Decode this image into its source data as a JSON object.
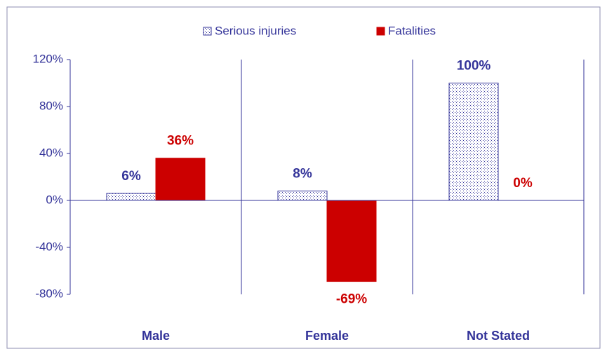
{
  "chart_data": {
    "type": "bar",
    "categories": [
      "Male",
      "Female",
      "Not Stated"
    ],
    "series": [
      {
        "name": "Serious injuries",
        "color": "#333399",
        "values": [
          6,
          8,
          100
        ],
        "value_labels": [
          "6%",
          "8%",
          "100%"
        ]
      },
      {
        "name": "Fatalities",
        "color": "#cc0000",
        "values": [
          36,
          -69,
          0
        ],
        "value_labels": [
          "36%",
          "-69%",
          "0%"
        ]
      }
    ],
    "ylim": [
      -80,
      120
    ],
    "yticks": [
      {
        "value": -80,
        "label": "-80%"
      },
      {
        "value": -40,
        "label": "-40%"
      },
      {
        "value": 0,
        "label": "0%"
      },
      {
        "value": 40,
        "label": "40%"
      },
      {
        "value": 80,
        "label": "80%"
      },
      {
        "value": 120,
        "label": "120%"
      }
    ],
    "legend": "top"
  }
}
